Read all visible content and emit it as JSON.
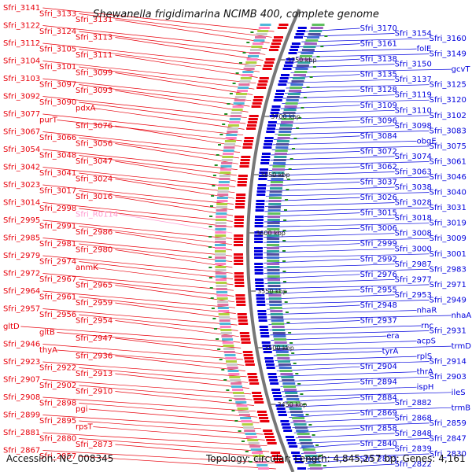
{
  "title": "Shewanella frigidimarina NCIMB 400, complete genome",
  "accession": "Accession: NC_008345",
  "topology": "Topology: circular; Length: 4,845,257 bp; Genes: 4,161",
  "colors": {
    "forward": "#e8000b",
    "reverse": "#0000dd",
    "rna": "#ff9ad0",
    "gc_green": "#1e8c1e",
    "backbone": "#777777"
  },
  "kbp_labels": [
    "3750 kbp",
    "3700 kbp",
    "3650 kbp",
    "3600 kbp",
    "3550 kbp",
    "3500 kbp",
    "3450 kbp"
  ],
  "left_labels": [
    "Sfri_3141",
    "Sfri_3133",
    "Sfri_3131",
    "Sfri_3122",
    "Sfri_3124",
    "Sfri_3113",
    "Sfri_3112",
    "Sfri_3105",
    "Sfri_3111",
    "Sfri_3104",
    "Sfri_3101",
    "Sfri_3099",
    "Sfri_3103",
    "Sfri_3097",
    "Sfri_3093",
    "Sfri_3092",
    "Sfri_3090",
    "pdxA",
    "Sfri_3077",
    "purT",
    "Sfri_3076",
    "Sfri_3067",
    "Sfri_3066",
    "Sfri_3056",
    "Sfri_3054",
    "Sfri_3048",
    "Sfri_3047",
    "Sfri_3042",
    "Sfri_3041",
    "Sfri_3024",
    "Sfri_3023",
    "Sfri_3017",
    "Sfri_3016",
    "Sfri_3014",
    "Sfri_2998",
    "Sfri_R0114",
    "Sfri_2995",
    "Sfri_2991",
    "Sfri_2986",
    "Sfri_2985",
    "Sfri_2981",
    "Sfri_2980",
    "Sfri_2979",
    "Sfri_2974",
    "anmK",
    "Sfri_2972",
    "Sfri_2967",
    "Sfri_2965",
    "Sfri_2964",
    "Sfri_2961",
    "Sfri_2959",
    "Sfri_2957",
    "Sfri_2956",
    "Sfri_2954",
    "gltD",
    "gltB",
    "Sfri_2947",
    "Sfri_2946",
    "thyA",
    "Sfri_2936",
    "Sfri_2923",
    "Sfri_2922",
    "Sfri_2913",
    "Sfri_2907",
    "Sfri_2902",
    "Sfri_2910",
    "Sfri_2908",
    "Sfri_2898",
    "pgi",
    "Sfri_2899",
    "Sfri_2895",
    "rpsT",
    "Sfri_2881",
    "Sfri_2880",
    "Sfri_2873",
    "Sfri_2867",
    "Sfri_2857"
  ],
  "right_labels": [
    "Sfri_3170",
    "Sfri_3154",
    "Sfri_3160",
    "Sfri_3161",
    "folE",
    "Sfri_3149",
    "Sfri_3138",
    "Sfri_3150",
    "gcvT",
    "Sfri_3135",
    "Sfri_3137",
    "Sfri_3125",
    "Sfri_3128",
    "Sfri_3119",
    "Sfri_3120",
    "Sfri_3109",
    "Sfri_3110",
    "Sfri_3102",
    "Sfri_3096",
    "Sfri_3098",
    "Sfri_3083",
    "Sfri_3084",
    "obgE",
    "Sfri_3075",
    "Sfri_3072",
    "Sfri_3074",
    "Sfri_3061",
    "Sfri_3062",
    "Sfri_3063",
    "Sfri_3046",
    "Sfri_3037",
    "Sfri_3038",
    "Sfri_3040",
    "Sfri_3026",
    "Sfri_3028",
    "Sfri_3031",
    "Sfri_3015",
    "Sfri_3018",
    "Sfri_3019",
    "Sfri_3006",
    "Sfri_3008",
    "Sfri_3009",
    "Sfri_2999",
    "Sfri_3000",
    "Sfri_3001",
    "Sfri_2992",
    "Sfri_2987",
    "Sfri_2983",
    "Sfri_2976",
    "Sfri_2977",
    "Sfri_2971",
    "Sfri_2955",
    "Sfri_2953",
    "Sfri_2949",
    "Sfri_2948",
    "nhaR",
    "nhaA",
    "Sfri_2937",
    "rnc",
    "Sfri_2931",
    "era",
    "acpS",
    "trmD",
    "tyrA",
    "rplS",
    "Sfri_2914",
    "Sfri_2904",
    "thrA",
    "Sfri_2903",
    "Sfri_2894",
    "ispH",
    "ileS",
    "Sfri_2884",
    "Sfri_2882",
    "trmB",
    "Sfri_2869",
    "Sfri_2868",
    "Sfri_2859",
    "Sfri_2858",
    "Sfri_2848",
    "Sfri_2847",
    "Sfri_2840",
    "Sfri_2839",
    "Sfri_2830",
    "Sfri_2823",
    "Sfri_2822"
  ]
}
